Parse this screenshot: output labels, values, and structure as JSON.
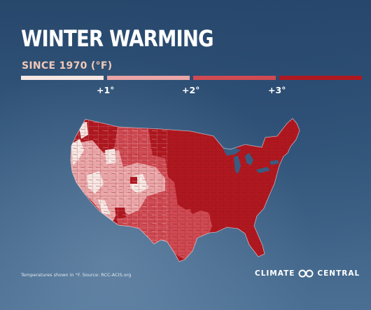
{
  "header": {
    "title": "WINTER WARMING",
    "subtitle": "SINCE 1970 (°F)"
  },
  "legend": {
    "bins": [
      {
        "color": "#f6e7e3"
      },
      {
        "color": "#e9a5a7"
      },
      {
        "color": "#cf4a52"
      },
      {
        "color": "#b01820"
      }
    ],
    "labels": [
      "+1°",
      "+2°",
      "+3°"
    ]
  },
  "map": {
    "region": "Contiguous United States",
    "colors": {
      "under_1": "#f6e7e3",
      "one_to_2": "#e9a5a7",
      "two_to_3": "#cf4a52",
      "over_3": "#b01820",
      "county_lines": "#7c0c12"
    },
    "description_values": {
      "east_central_south": "+3°",
      "west_and_texas": "+1° to +3°"
    }
  },
  "footer": {
    "source": "Temperatures shown in °F. Source: RCC-ACIS.org",
    "brand_left": "CLIMATE",
    "brand_right": "CENTRAL"
  }
}
